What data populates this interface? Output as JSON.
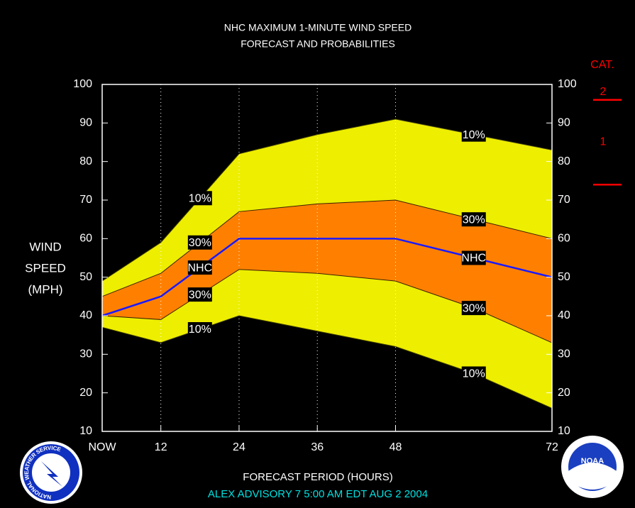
{
  "chart_data": {
    "type": "band",
    "title": [
      "NHC MAXIMUM 1-MINUTE WIND SPEED",
      "FORECAST AND PROBABILITIES"
    ],
    "y_label": [
      "WIND",
      "SPEED",
      "(MPH)"
    ],
    "x_label": "FORECAST PERIOD (HOURS)",
    "subtitle": "ALEX   ADVISORY  7 5:00 AM  EDT  AUG  2  2004",
    "x": [
      3,
      12,
      24,
      36,
      48,
      60,
      72
    ],
    "xlim": [
      3,
      72
    ],
    "xticks": [
      {
        "value": 3,
        "label": "NOW"
      },
      12,
      24,
      36,
      48,
      72
    ],
    "ylim": [
      10,
      100
    ],
    "yticks": [
      10,
      20,
      30,
      40,
      50,
      60,
      70,
      80,
      90,
      100
    ],
    "xgrid": true,
    "series": [
      {
        "name": "10%",
        "color": "#3a3a00",
        "fill": "#eeee00",
        "values": [
          49,
          59,
          82,
          87,
          91,
          87,
          83
        ]
      },
      {
        "name": "30%",
        "color": "#3a2000",
        "fill": "#ff8000",
        "values": [
          45,
          51,
          67,
          69,
          70,
          65,
          60
        ]
      },
      {
        "name": "NHC",
        "color": "#1a1aff",
        "values": [
          40,
          45,
          60,
          60,
          60,
          55,
          50
        ]
      },
      {
        "name": "30%",
        "color": "#3a2000",
        "values": [
          40,
          39,
          52,
          51,
          49,
          42,
          33
        ]
      },
      {
        "name": "10%",
        "color": "#3a3a00",
        "values": [
          37,
          33,
          40,
          36,
          32,
          25,
          16
        ]
      }
    ],
    "category_scale": {
      "title": "CAT.",
      "color": "#ff0000",
      "thresholds": [
        74,
        96
      ],
      "labels": [
        "1",
        "2"
      ]
    },
    "logos": {
      "left": "NATIONAL WEATHER SERVICE",
      "right": "NOAA"
    }
  }
}
